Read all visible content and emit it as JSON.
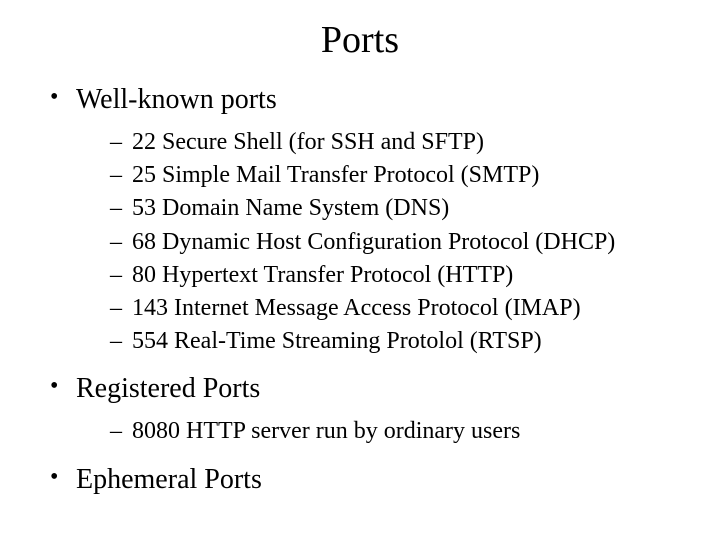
{
  "title": "Ports",
  "title_fontsize": 38,
  "body_font": "Times New Roman",
  "text_color": "#000000",
  "background_color": "#ffffff",
  "bullets": [
    {
      "label": "Well-known ports",
      "children": [
        "22 Secure Shell (for SSH and SFTP)",
        "25 Simple Mail Transfer Protocol (SMTP)",
        "53 Domain Name System (DNS)",
        "68 Dynamic Host Configuration Protocol (DHCP)",
        "80 Hypertext Transfer Protocol (HTTP)",
        "143 Internet Message Access Protocol (IMAP)",
        "554 Real-Time Streaming Protolol (RTSP)"
      ]
    },
    {
      "label": "Registered Ports",
      "children": [
        "8080 HTTP server run by ordinary users"
      ]
    },
    {
      "label": "Ephemeral Ports",
      "children": []
    }
  ],
  "level1_fontsize": 28,
  "level2_fontsize": 24
}
